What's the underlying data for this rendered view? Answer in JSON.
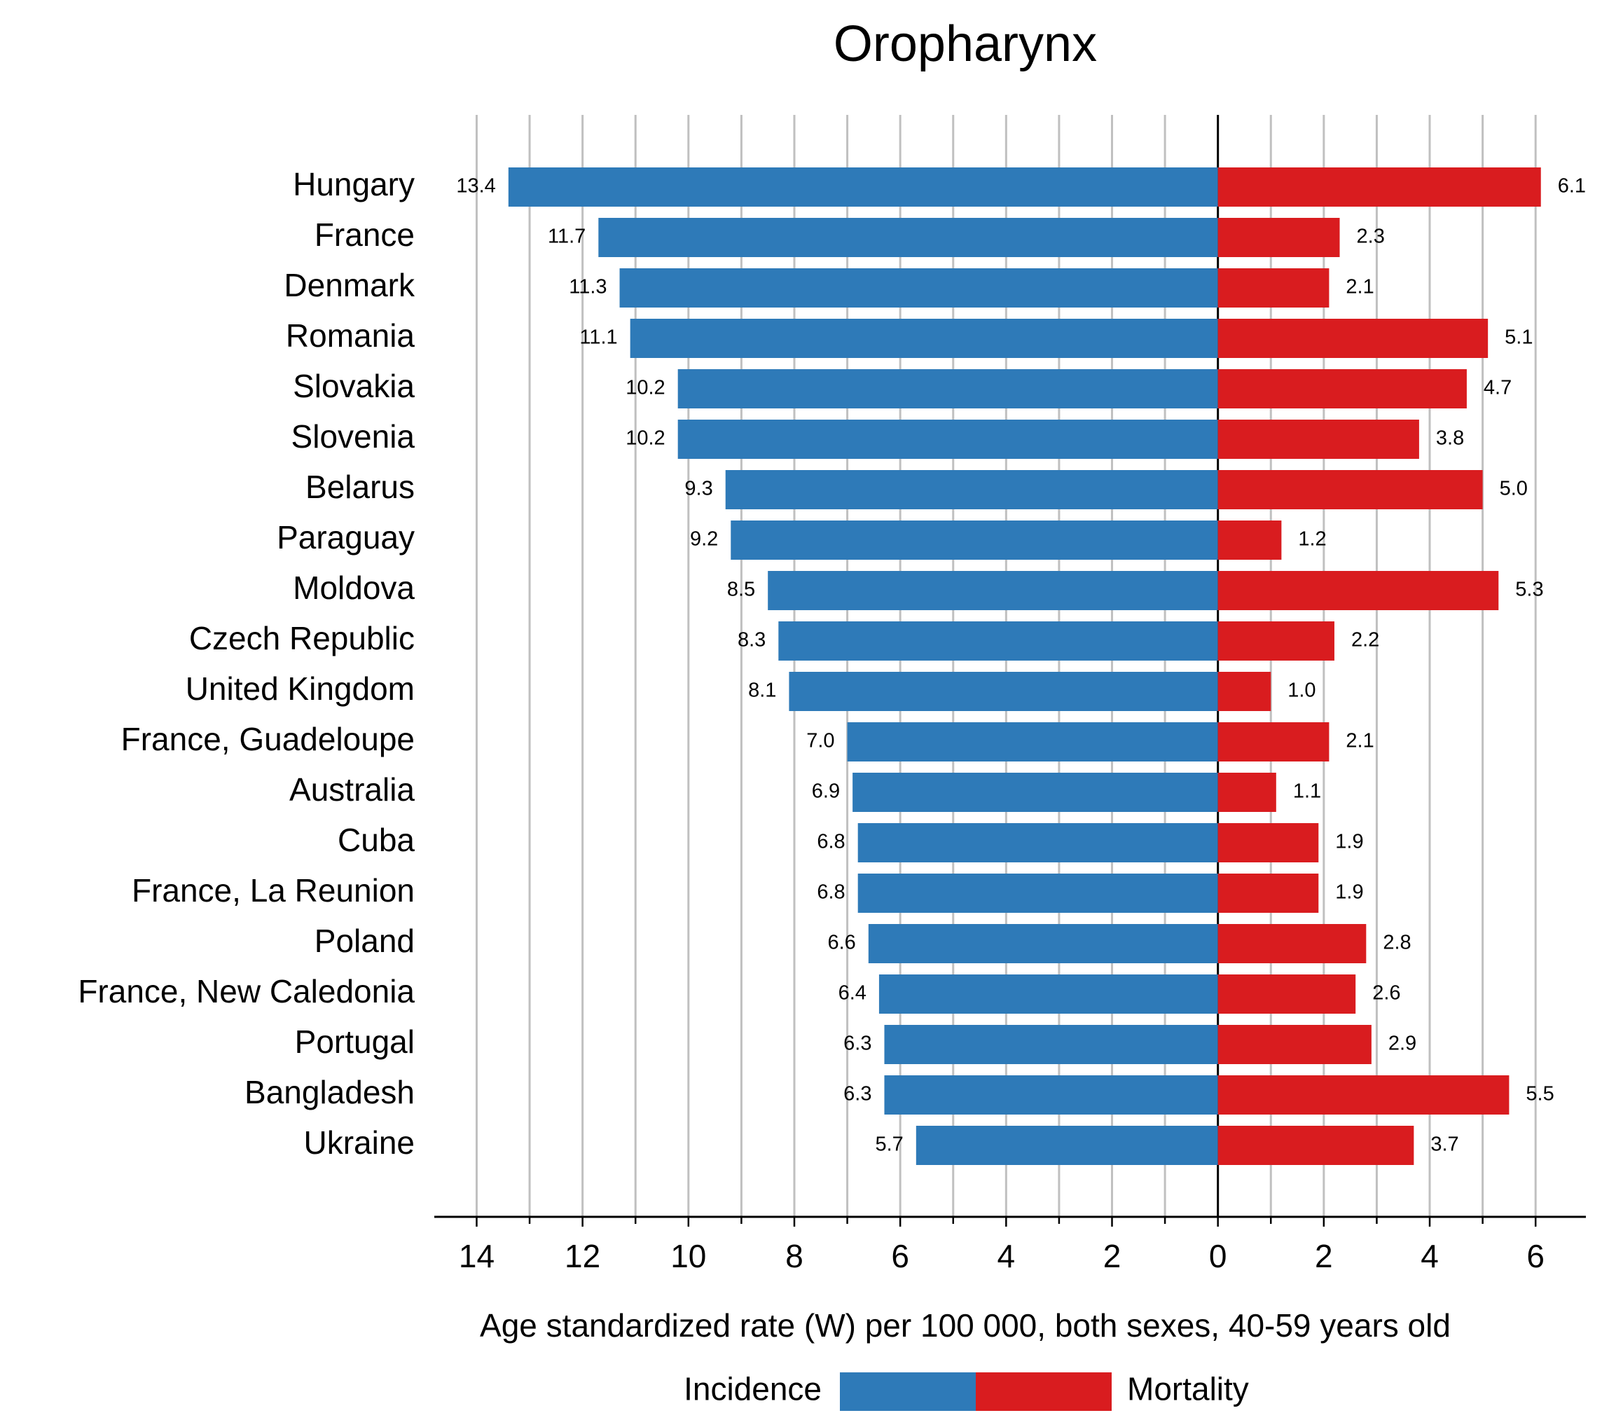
{
  "chart_data": {
    "type": "diverging_bar",
    "title": "Oropharynx",
    "x_label": "Age standardized rate (W) per 100 000, both sexes, 40-59 years old",
    "categories": [
      "Hungary",
      "France",
      "Denmark",
      "Romania",
      "Slovakia",
      "Slovenia",
      "Belarus",
      "Paraguay",
      "Moldova",
      "Czech Republic",
      "United Kingdom",
      "France, Guadeloupe",
      "Australia",
      "Cuba",
      "France, La Reunion",
      "Poland",
      "France, New Caledonia",
      "Portugal",
      "Bangladesh",
      "Ukraine"
    ],
    "series": [
      {
        "name": "Incidence",
        "color": "#2e7ab8",
        "side": "left",
        "values": [
          13.4,
          11.7,
          11.3,
          11.1,
          10.2,
          10.2,
          9.3,
          9.2,
          8.5,
          8.3,
          8.1,
          7.0,
          6.9,
          6.8,
          6.8,
          6.6,
          6.4,
          6.3,
          6.3,
          5.7
        ],
        "value_labels": [
          "13.4",
          "11.7",
          "11.3",
          "11.1",
          "10.2",
          "10.2",
          "9.3",
          "9.2",
          "8.5",
          "8.3",
          "8.1",
          "7.0",
          "6.9",
          "6.8",
          "6.8",
          "6.6",
          "6.4",
          "6.3",
          "6.3",
          "5.7"
        ]
      },
      {
        "name": "Mortality",
        "color": "#d91c1f",
        "side": "right",
        "values": [
          6.1,
          2.3,
          2.1,
          5.1,
          4.7,
          3.8,
          5.0,
          1.2,
          5.3,
          2.2,
          1.0,
          2.1,
          1.1,
          1.9,
          1.9,
          2.8,
          2.6,
          2.9,
          5.5,
          3.7
        ],
        "value_labels": [
          "6.1",
          "2.3",
          "2.1",
          "5.1",
          "4.7",
          "3.8",
          "5.0",
          "1.2",
          "5.3",
          "2.2",
          "1.0",
          "2.1",
          "1.1",
          "1.9",
          "1.9",
          "2.8",
          "2.6",
          "2.9",
          "5.5",
          "3.7"
        ]
      }
    ],
    "xlim_left": [
      0,
      14.8
    ],
    "xlim_right": [
      0,
      6.95
    ],
    "xticks_left": [
      14,
      12,
      10,
      8,
      6,
      4,
      2
    ],
    "xticks_right": [
      0,
      2,
      4,
      6
    ],
    "minor_xticks_left": [
      13,
      11,
      9,
      7,
      5,
      3,
      1
    ],
    "minor_xticks_right": [
      1,
      3,
      5
    ],
    "grid": true
  }
}
